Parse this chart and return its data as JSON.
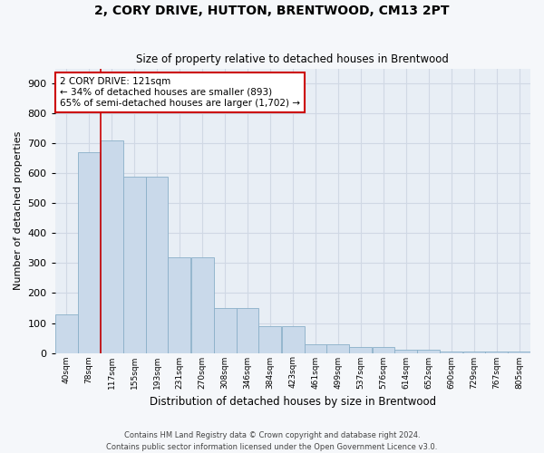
{
  "title": "2, CORY DRIVE, HUTTON, BRENTWOOD, CM13 2PT",
  "subtitle": "Size of property relative to detached houses in Brentwood",
  "xlabel": "Distribution of detached houses by size in Brentwood",
  "ylabel": "Number of detached properties",
  "bar_color": "#c9d9ea",
  "bar_edge_color": "#8aafc8",
  "background_color": "#e8eef5",
  "fig_color": "#f5f7fa",
  "grid_color": "#d0d8e4",
  "annotation_line_color": "#cc0000",
  "property_line_x": 117,
  "categories": [
    "40sqm",
    "78sqm",
    "117sqm",
    "155sqm",
    "193sqm",
    "231sqm",
    "270sqm",
    "308sqm",
    "346sqm",
    "384sqm",
    "423sqm",
    "461sqm",
    "499sqm",
    "537sqm",
    "576sqm",
    "614sqm",
    "652sqm",
    "690sqm",
    "729sqm",
    "767sqm",
    "805sqm"
  ],
  "bin_edges": [
    40,
    78,
    117,
    155,
    193,
    231,
    270,
    308,
    346,
    384,
    423,
    461,
    499,
    537,
    576,
    614,
    652,
    690,
    729,
    767,
    805
  ],
  "bin_width": 38,
  "values": [
    130,
    670,
    710,
    590,
    590,
    320,
    320,
    150,
    150,
    90,
    90,
    30,
    30,
    20,
    20,
    10,
    10,
    5,
    5,
    5,
    5
  ],
  "ylim": [
    0,
    950
  ],
  "yticks": [
    0,
    100,
    200,
    300,
    400,
    500,
    600,
    700,
    800,
    900
  ],
  "annotation_text": "2 CORY DRIVE: 121sqm\n← 34% of detached houses are smaller (893)\n65% of semi-detached houses are larger (1,702) →",
  "footnote1": "Contains HM Land Registry data © Crown copyright and database right 2024.",
  "footnote2": "Contains public sector information licensed under the Open Government Licence v3.0."
}
